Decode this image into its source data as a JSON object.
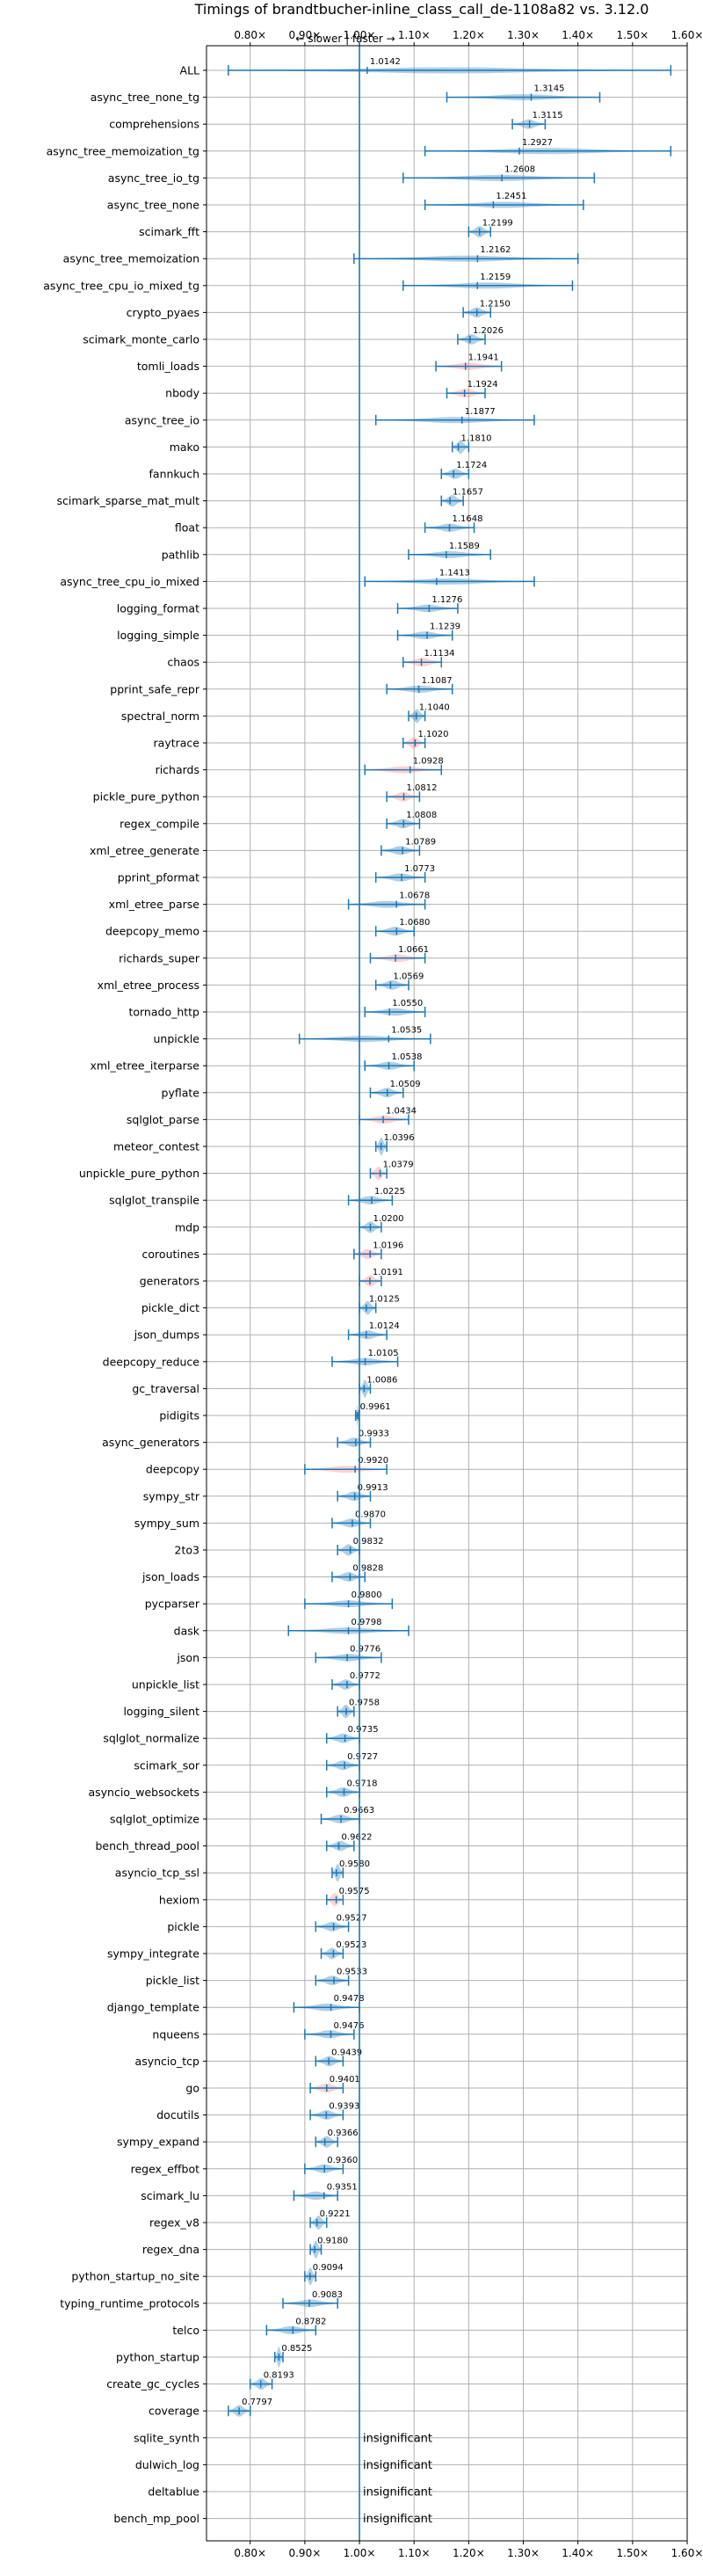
{
  "chart_data": {
    "type": "violin",
    "title": "Timings of brandtbucher-inline_class_call_de-1108a82 vs. 3.12.0",
    "subtitle": "← slower | faster →",
    "xlim": [
      0.72,
      1.6
    ],
    "baseline": 1.0,
    "xticks": [
      0.8,
      0.9,
      1.0,
      1.1,
      1.2,
      1.3,
      1.4,
      1.5,
      1.6
    ],
    "xtick_labels": [
      "0.80×",
      "0.90×",
      "1.00×",
      "1.10×",
      "1.20×",
      "1.30×",
      "1.40×",
      "1.50×",
      "1.60×"
    ],
    "colors": {
      "normal": "#1f77b4",
      "highlight": "#ff7f7f",
      "baseline": "#1f77b4",
      "grid": "#b0b0b0"
    },
    "insignificant_label": "insignificant",
    "benchmarks": [
      {
        "name": "ALL",
        "value": 1.0142,
        "min": 0.76,
        "max": 1.57,
        "highlight": false
      },
      {
        "name": "async_tree_none_tg",
        "value": 1.3145,
        "min": 1.16,
        "max": 1.44,
        "highlight": false
      },
      {
        "name": "comprehensions",
        "value": 1.3115,
        "min": 1.28,
        "max": 1.34,
        "highlight": false
      },
      {
        "name": "async_tree_memoization_tg",
        "value": 1.2927,
        "min": 1.12,
        "max": 1.57,
        "highlight": false
      },
      {
        "name": "async_tree_io_tg",
        "value": 1.2608,
        "min": 1.08,
        "max": 1.43,
        "highlight": false
      },
      {
        "name": "async_tree_none",
        "value": 1.2451,
        "min": 1.12,
        "max": 1.41,
        "highlight": false
      },
      {
        "name": "scimark_fft",
        "value": 1.2199,
        "min": 1.2,
        "max": 1.24,
        "highlight": false
      },
      {
        "name": "async_tree_memoization",
        "value": 1.2162,
        "min": 0.99,
        "max": 1.4,
        "highlight": false
      },
      {
        "name": "async_tree_cpu_io_mixed_tg",
        "value": 1.2159,
        "min": 1.08,
        "max": 1.39,
        "highlight": false
      },
      {
        "name": "crypto_pyaes",
        "value": 1.215,
        "min": 1.19,
        "max": 1.24,
        "highlight": false
      },
      {
        "name": "scimark_monte_carlo",
        "value": 1.2026,
        "min": 1.18,
        "max": 1.23,
        "highlight": false
      },
      {
        "name": "tomli_loads",
        "value": 1.1941,
        "min": 1.14,
        "max": 1.26,
        "highlight": true
      },
      {
        "name": "nbody",
        "value": 1.1924,
        "min": 1.16,
        "max": 1.23,
        "highlight": true
      },
      {
        "name": "async_tree_io",
        "value": 1.1877,
        "min": 1.03,
        "max": 1.32,
        "highlight": false
      },
      {
        "name": "mako",
        "value": 1.181,
        "min": 1.17,
        "max": 1.2,
        "highlight": false
      },
      {
        "name": "fannkuch",
        "value": 1.1724,
        "min": 1.15,
        "max": 1.2,
        "highlight": false
      },
      {
        "name": "scimark_sparse_mat_mult",
        "value": 1.1657,
        "min": 1.15,
        "max": 1.19,
        "highlight": false
      },
      {
        "name": "float",
        "value": 1.1648,
        "min": 1.12,
        "max": 1.21,
        "highlight": false
      },
      {
        "name": "pathlib",
        "value": 1.1589,
        "min": 1.09,
        "max": 1.24,
        "highlight": false
      },
      {
        "name": "async_tree_cpu_io_mixed",
        "value": 1.1413,
        "min": 1.01,
        "max": 1.32,
        "highlight": false
      },
      {
        "name": "logging_format",
        "value": 1.1276,
        "min": 1.07,
        "max": 1.18,
        "highlight": false
      },
      {
        "name": "logging_simple",
        "value": 1.1239,
        "min": 1.07,
        "max": 1.17,
        "highlight": false
      },
      {
        "name": "chaos",
        "value": 1.1134,
        "min": 1.08,
        "max": 1.15,
        "highlight": true
      },
      {
        "name": "pprint_safe_repr",
        "value": 1.1087,
        "min": 1.05,
        "max": 1.17,
        "highlight": false
      },
      {
        "name": "spectral_norm",
        "value": 1.104,
        "min": 1.09,
        "max": 1.12,
        "highlight": false
      },
      {
        "name": "raytrace",
        "value": 1.102,
        "min": 1.08,
        "max": 1.12,
        "highlight": true
      },
      {
        "name": "richards",
        "value": 1.0928,
        "min": 1.01,
        "max": 1.15,
        "highlight": true
      },
      {
        "name": "pickle_pure_python",
        "value": 1.0812,
        "min": 1.05,
        "max": 1.11,
        "highlight": true
      },
      {
        "name": "regex_compile",
        "value": 1.0808,
        "min": 1.05,
        "max": 1.11,
        "highlight": false
      },
      {
        "name": "xml_etree_generate",
        "value": 1.0789,
        "min": 1.04,
        "max": 1.11,
        "highlight": false
      },
      {
        "name": "pprint_pformat",
        "value": 1.0773,
        "min": 1.03,
        "max": 1.12,
        "highlight": false
      },
      {
        "name": "xml_etree_parse",
        "value": 1.0678,
        "min": 0.98,
        "max": 1.12,
        "highlight": false
      },
      {
        "name": "deepcopy_memo",
        "value": 1.068,
        "min": 1.03,
        "max": 1.1,
        "highlight": false
      },
      {
        "name": "richards_super",
        "value": 1.0661,
        "min": 1.02,
        "max": 1.12,
        "highlight": true
      },
      {
        "name": "xml_etree_process",
        "value": 1.0569,
        "min": 1.03,
        "max": 1.09,
        "highlight": false
      },
      {
        "name": "tornado_http",
        "value": 1.055,
        "min": 1.01,
        "max": 1.12,
        "highlight": false
      },
      {
        "name": "unpickle",
        "value": 1.0535,
        "min": 0.89,
        "max": 1.13,
        "highlight": false
      },
      {
        "name": "xml_etree_iterparse",
        "value": 1.0538,
        "min": 1.01,
        "max": 1.1,
        "highlight": false
      },
      {
        "name": "pyflate",
        "value": 1.0509,
        "min": 1.02,
        "max": 1.08,
        "highlight": false
      },
      {
        "name": "sqlglot_parse",
        "value": 1.0434,
        "min": 1.0,
        "max": 1.09,
        "highlight": true
      },
      {
        "name": "meteor_contest",
        "value": 1.0396,
        "min": 1.03,
        "max": 1.05,
        "highlight": false
      },
      {
        "name": "unpickle_pure_python",
        "value": 1.0379,
        "min": 1.02,
        "max": 1.05,
        "highlight": true
      },
      {
        "name": "sqlglot_transpile",
        "value": 1.0225,
        "min": 0.98,
        "max": 1.06,
        "highlight": false
      },
      {
        "name": "mdp",
        "value": 1.02,
        "min": 1.0,
        "max": 1.04,
        "highlight": false
      },
      {
        "name": "coroutines",
        "value": 1.0196,
        "min": 0.99,
        "max": 1.04,
        "highlight": true
      },
      {
        "name": "generators",
        "value": 1.0191,
        "min": 1.0,
        "max": 1.04,
        "highlight": true
      },
      {
        "name": "pickle_dict",
        "value": 1.0125,
        "min": 1.0,
        "max": 1.03,
        "highlight": false
      },
      {
        "name": "json_dumps",
        "value": 1.0124,
        "min": 0.98,
        "max": 1.05,
        "highlight": false
      },
      {
        "name": "deepcopy_reduce",
        "value": 1.0105,
        "min": 0.95,
        "max": 1.07,
        "highlight": false
      },
      {
        "name": "gc_traversal",
        "value": 1.0086,
        "min": 1.0,
        "max": 1.02,
        "highlight": false
      },
      {
        "name": "pidigits",
        "value": 0.9961,
        "min": 0.993,
        "max": 0.999,
        "highlight": false
      },
      {
        "name": "async_generators",
        "value": 0.9933,
        "min": 0.96,
        "max": 1.02,
        "highlight": false
      },
      {
        "name": "deepcopy",
        "value": 0.992,
        "min": 0.9,
        "max": 1.05,
        "highlight": true
      },
      {
        "name": "sympy_str",
        "value": 0.9913,
        "min": 0.96,
        "max": 1.02,
        "highlight": false
      },
      {
        "name": "sympy_sum",
        "value": 0.987,
        "min": 0.95,
        "max": 1.02,
        "highlight": false
      },
      {
        "name": "2to3",
        "value": 0.9832,
        "min": 0.96,
        "max": 1.0,
        "highlight": false
      },
      {
        "name": "json_loads",
        "value": 0.9828,
        "min": 0.95,
        "max": 1.01,
        "highlight": false
      },
      {
        "name": "pycparser",
        "value": 0.98,
        "min": 0.9,
        "max": 1.06,
        "highlight": false
      },
      {
        "name": "dask",
        "value": 0.9798,
        "min": 0.87,
        "max": 1.09,
        "highlight": false
      },
      {
        "name": "json",
        "value": 0.9776,
        "min": 0.92,
        "max": 1.04,
        "highlight": false
      },
      {
        "name": "unpickle_list",
        "value": 0.9772,
        "min": 0.95,
        "max": 1.0,
        "highlight": false
      },
      {
        "name": "logging_silent",
        "value": 0.9758,
        "min": 0.96,
        "max": 0.99,
        "highlight": false
      },
      {
        "name": "sqlglot_normalize",
        "value": 0.9735,
        "min": 0.94,
        "max": 1.0,
        "highlight": false
      },
      {
        "name": "scimark_sor",
        "value": 0.9727,
        "min": 0.94,
        "max": 1.0,
        "highlight": false
      },
      {
        "name": "asyncio_websockets",
        "value": 0.9718,
        "min": 0.94,
        "max": 1.0,
        "highlight": false
      },
      {
        "name": "sqlglot_optimize",
        "value": 0.9663,
        "min": 0.93,
        "max": 1.0,
        "highlight": false
      },
      {
        "name": "bench_thread_pool",
        "value": 0.9622,
        "min": 0.94,
        "max": 0.99,
        "highlight": false
      },
      {
        "name": "asyncio_tcp_ssl",
        "value": 0.958,
        "min": 0.95,
        "max": 0.97,
        "highlight": false
      },
      {
        "name": "hexiom",
        "value": 0.9575,
        "min": 0.94,
        "max": 0.97,
        "highlight": true
      },
      {
        "name": "pickle",
        "value": 0.9527,
        "min": 0.92,
        "max": 0.98,
        "highlight": false
      },
      {
        "name": "sympy_integrate",
        "value": 0.9523,
        "min": 0.93,
        "max": 0.97,
        "highlight": false
      },
      {
        "name": "pickle_list",
        "value": 0.9533,
        "min": 0.92,
        "max": 0.98,
        "highlight": false
      },
      {
        "name": "django_template",
        "value": 0.9478,
        "min": 0.88,
        "max": 1.0,
        "highlight": false
      },
      {
        "name": "nqueens",
        "value": 0.9476,
        "min": 0.9,
        "max": 0.99,
        "highlight": false
      },
      {
        "name": "asyncio_tcp",
        "value": 0.9439,
        "min": 0.92,
        "max": 0.97,
        "highlight": false
      },
      {
        "name": "go",
        "value": 0.9401,
        "min": 0.91,
        "max": 0.97,
        "highlight": true
      },
      {
        "name": "docutils",
        "value": 0.9393,
        "min": 0.91,
        "max": 0.97,
        "highlight": false
      },
      {
        "name": "sympy_expand",
        "value": 0.9366,
        "min": 0.92,
        "max": 0.96,
        "highlight": false
      },
      {
        "name": "regex_effbot",
        "value": 0.936,
        "min": 0.9,
        "max": 0.97,
        "highlight": false
      },
      {
        "name": "scimark_lu",
        "value": 0.9351,
        "min": 0.88,
        "max": 0.96,
        "highlight": false
      },
      {
        "name": "regex_v8",
        "value": 0.9221,
        "min": 0.91,
        "max": 0.94,
        "highlight": false
      },
      {
        "name": "regex_dna",
        "value": 0.918,
        "min": 0.91,
        "max": 0.93,
        "highlight": false
      },
      {
        "name": "python_startup_no_site",
        "value": 0.9094,
        "min": 0.9,
        "max": 0.92,
        "highlight": false
      },
      {
        "name": "typing_runtime_protocols",
        "value": 0.9083,
        "min": 0.86,
        "max": 0.96,
        "highlight": false
      },
      {
        "name": "telco",
        "value": 0.8782,
        "min": 0.83,
        "max": 0.92,
        "highlight": false
      },
      {
        "name": "python_startup",
        "value": 0.8525,
        "min": 0.845,
        "max": 0.86,
        "highlight": false
      },
      {
        "name": "create_gc_cycles",
        "value": 0.8193,
        "min": 0.8,
        "max": 0.84,
        "highlight": false
      },
      {
        "name": "coverage",
        "value": 0.7797,
        "min": 0.76,
        "max": 0.8,
        "highlight": false
      },
      {
        "name": "sqlite_synth",
        "value": null,
        "insignificant": true
      },
      {
        "name": "dulwich_log",
        "value": null,
        "insignificant": true
      },
      {
        "name": "deltablue",
        "value": null,
        "insignificant": true
      },
      {
        "name": "bench_mp_pool",
        "value": null,
        "insignificant": true
      }
    ]
  }
}
